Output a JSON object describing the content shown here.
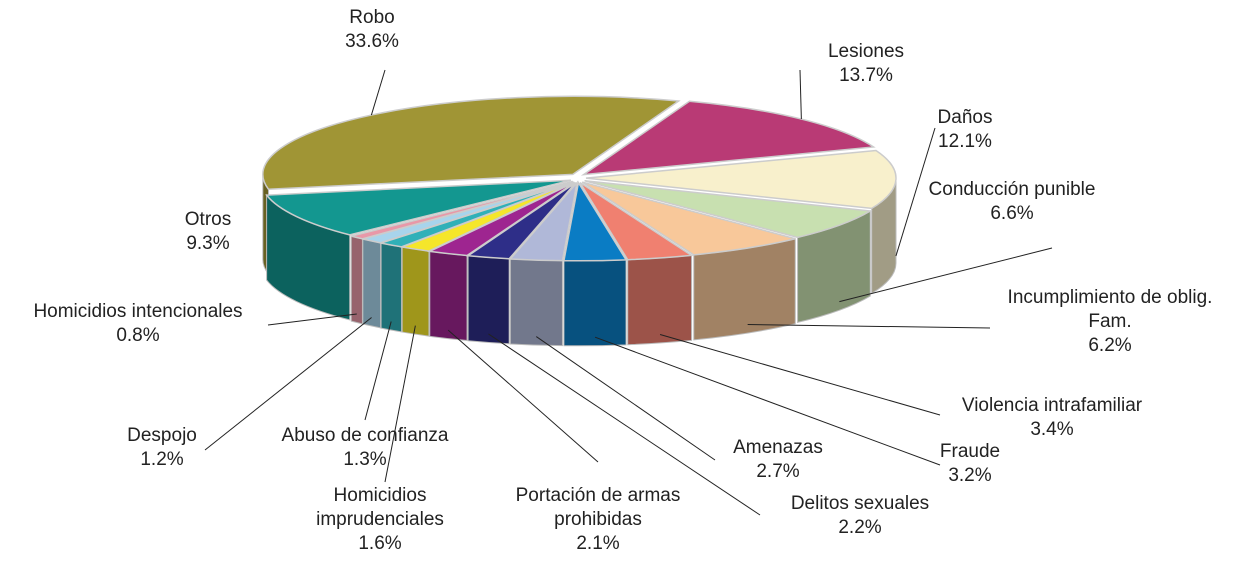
{
  "chart_data": {
    "type": "pie3d",
    "categories": [
      "Robo",
      "Lesiones",
      "Daños",
      "Conducción punible",
      "Incumplimiento de oblig. Fam.",
      "Violencia intrafamiliar",
      "Fraude",
      "Amenazas",
      "Delitos sexuales",
      "Portación de armas prohibidas",
      "Homicidios imprudenciales",
      "Abuso de confianza",
      "Despojo",
      "Homicidios intencionales",
      "Otros"
    ],
    "values": [
      33.6,
      13.7,
      12.1,
      6.6,
      6.2,
      3.4,
      3.2,
      2.7,
      2.2,
      2.1,
      1.6,
      1.3,
      1.2,
      0.8,
      9.3
    ],
    "value_labels": [
      "33.6%",
      "13.7%",
      "12.1%",
      "6.6%",
      "6.2%",
      "3.4%",
      "3.2%",
      "2.7%",
      "2.2%",
      "2.1%",
      "1.6%",
      "1.3%",
      "1.2%",
      "0.8%",
      "9.3%"
    ],
    "colors": [
      "#a09535",
      "#b93a75",
      "#f8f0cc",
      "#c8e0b0",
      "#f8c89a",
      "#f08070",
      "#0a7cc4",
      "#b0b8d8",
      "#2e2e88",
      "#9e2590",
      "#f5e62a",
      "#30b0b8",
      "#a8d4ec",
      "#e898a8",
      "#139790"
    ]
  }
}
